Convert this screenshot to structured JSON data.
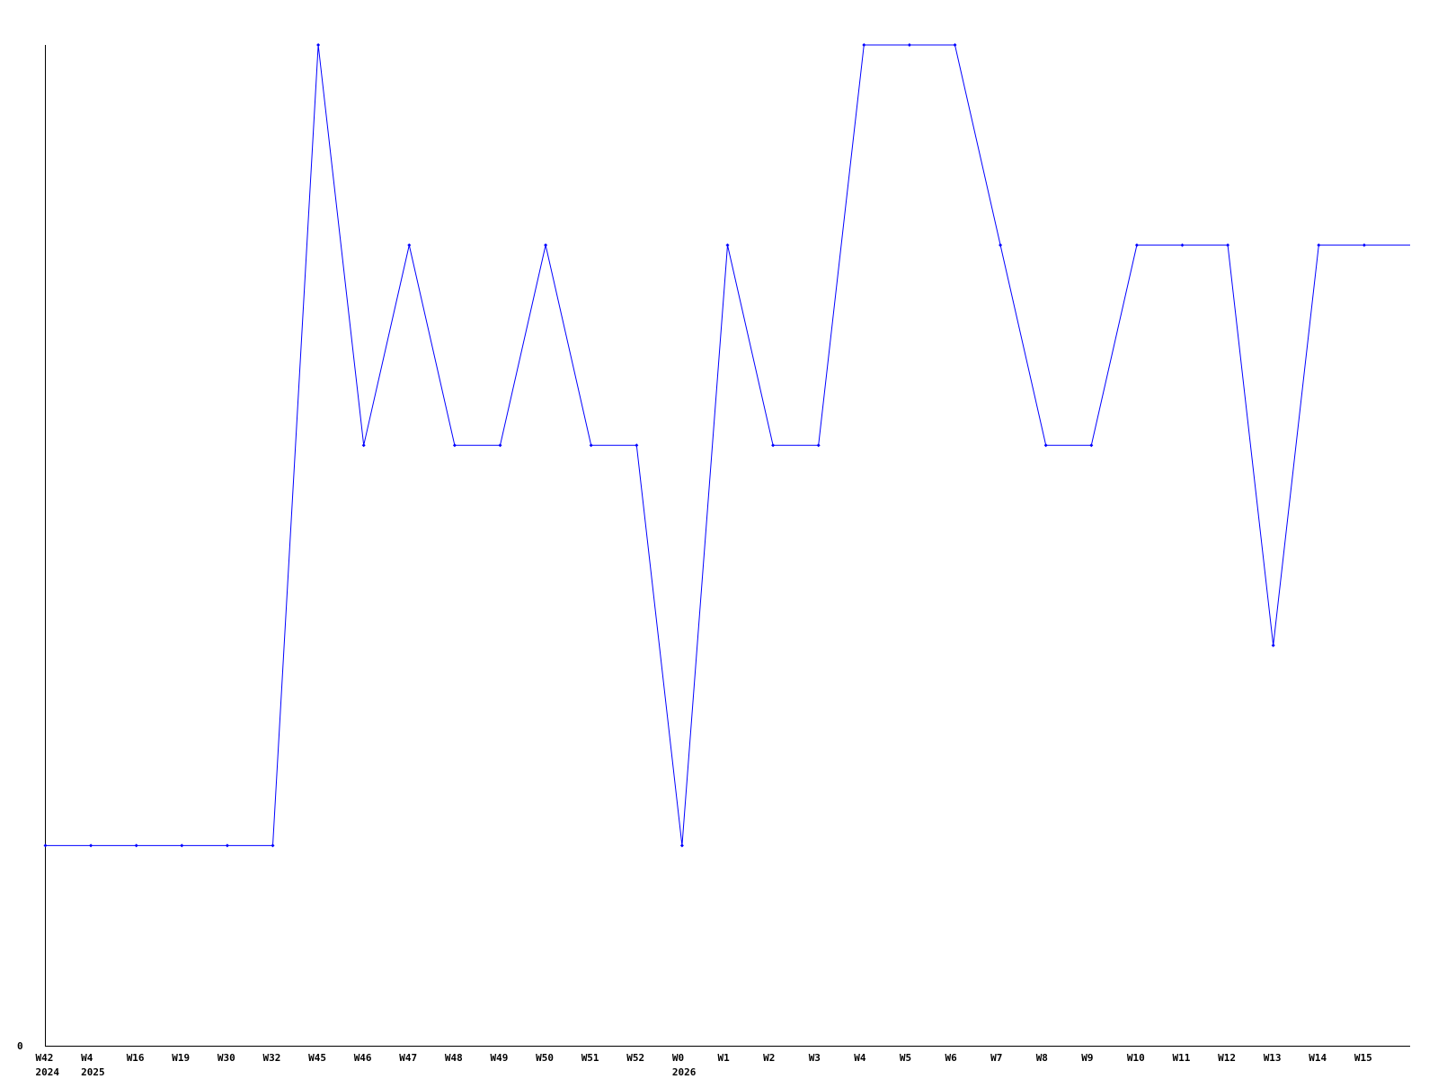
{
  "chart_data": {
    "type": "line",
    "title": "",
    "xlabel": "",
    "ylabel": "",
    "ylim": [
      0,
      5
    ],
    "y_tick_labels": [
      "0"
    ],
    "grid": false,
    "legend": "none",
    "line_color": "#0000ff",
    "categories": [
      {
        "label": "W42",
        "year": "2024"
      },
      {
        "label": "W4",
        "year": "2025"
      },
      {
        "label": "W16"
      },
      {
        "label": "W19"
      },
      {
        "label": "W30"
      },
      {
        "label": "W32"
      },
      {
        "label": "W45"
      },
      {
        "label": "W46"
      },
      {
        "label": "W47"
      },
      {
        "label": "W48"
      },
      {
        "label": "W49"
      },
      {
        "label": "W50"
      },
      {
        "label": "W51"
      },
      {
        "label": "W52"
      },
      {
        "label": "W0",
        "year": "2026"
      },
      {
        "label": "W1"
      },
      {
        "label": "W2"
      },
      {
        "label": "W3"
      },
      {
        "label": "W4"
      },
      {
        "label": "W5"
      },
      {
        "label": "W6"
      },
      {
        "label": "W7"
      },
      {
        "label": "W8"
      },
      {
        "label": "W9"
      },
      {
        "label": "W10"
      },
      {
        "label": "W11"
      },
      {
        "label": "W12"
      },
      {
        "label": "W13"
      },
      {
        "label": "W14"
      },
      {
        "label": "W15"
      }
    ],
    "values": [
      1,
      1,
      1,
      1,
      1,
      1,
      5,
      3,
      4,
      3,
      3,
      4,
      3,
      3,
      1,
      4,
      3,
      3,
      5,
      5,
      5,
      4,
      3,
      3,
      4,
      4,
      4,
      2,
      4,
      4
    ]
  }
}
